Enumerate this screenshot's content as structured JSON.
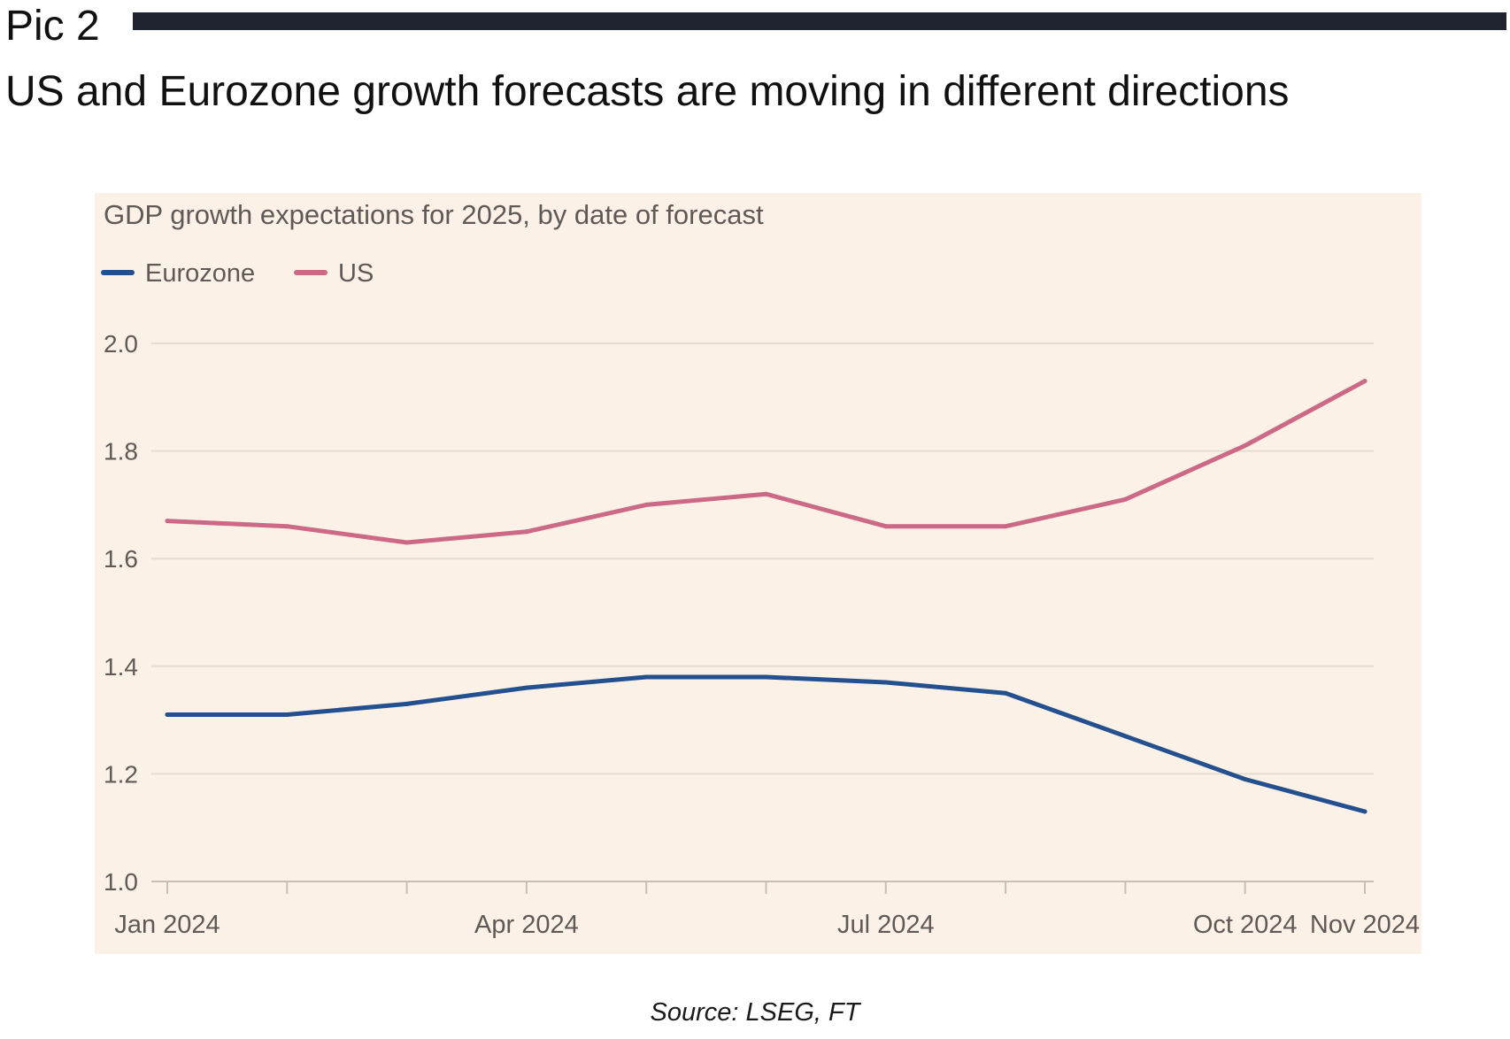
{
  "pic_label": "Pic 2",
  "headline": "US and Eurozone growth forecasts are moving in different directions",
  "source": "Source: LSEG, FT",
  "colors": {
    "panel_background": "#fbf1e6",
    "eurozone": "#24508f",
    "us": "#cc6987",
    "rule": "#1f2330"
  },
  "chart_data": {
    "type": "line",
    "title": "GDP growth expectations for 2025, by date of forecast",
    "xlabel": "",
    "ylabel": "",
    "x": [
      "Jan 2024",
      "Feb 2024",
      "Mar 2024",
      "Apr 2024",
      "May 2024",
      "Jun 2024",
      "Jul 2024",
      "Aug 2024",
      "Sep 2024",
      "Oct 2024",
      "Nov 2024"
    ],
    "x_tick_labels": [
      "Jan 2024",
      "",
      "",
      "Apr 2024",
      "",
      "",
      "Jul 2024",
      "",
      "",
      "Oct 2024",
      "Nov 2024"
    ],
    "ylim": [
      1.0,
      2.0
    ],
    "yticks": [
      "2.0",
      "1.8",
      "1.6",
      "1.4",
      "1.2",
      "1.0"
    ],
    "grid": true,
    "legend_position": "top-left",
    "series": [
      {
        "name": "Eurozone",
        "color": "#24508f",
        "values": [
          1.31,
          1.31,
          1.33,
          1.36,
          1.38,
          1.38,
          1.37,
          1.35,
          1.27,
          1.19,
          1.13
        ]
      },
      {
        "name": "US",
        "color": "#cc6987",
        "values": [
          1.67,
          1.66,
          1.63,
          1.65,
          1.7,
          1.72,
          1.66,
          1.66,
          1.71,
          1.81,
          1.93
        ]
      }
    ]
  }
}
